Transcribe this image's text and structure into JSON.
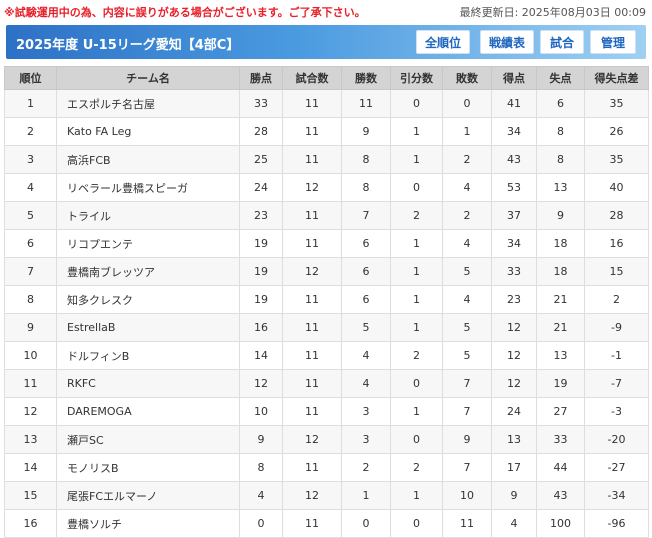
{
  "notice": "※試験運用中の為、内容に誤りがある場合がございます。ご了承下さい。",
  "updated": "最終更新日: 2025年08月03日 00:09",
  "header": {
    "title": "2025年度 U-15リーグ愛知【4部C】",
    "buttons": {
      "standings": "全順位",
      "results": "戦績表",
      "matches": "試合",
      "admin": "管理"
    }
  },
  "table": {
    "columns": [
      "順位",
      "チーム名",
      "勝点",
      "試合数",
      "勝数",
      "引分数",
      "敗数",
      "得点",
      "失点",
      "得失点差"
    ],
    "rows": [
      [
        "1",
        "エスポルチ名古屋",
        "33",
        "11",
        "11",
        "0",
        "0",
        "41",
        "6",
        "35"
      ],
      [
        "2",
        "Kato FA Leg",
        "28",
        "11",
        "9",
        "1",
        "1",
        "34",
        "8",
        "26"
      ],
      [
        "3",
        "高浜FCB",
        "25",
        "11",
        "8",
        "1",
        "2",
        "43",
        "8",
        "35"
      ],
      [
        "4",
        "リベラール豊橋スピーガ",
        "24",
        "12",
        "8",
        "0",
        "4",
        "53",
        "13",
        "40"
      ],
      [
        "5",
        "トライル",
        "23",
        "11",
        "7",
        "2",
        "2",
        "37",
        "9",
        "28"
      ],
      [
        "6",
        "リコプエンテ",
        "19",
        "11",
        "6",
        "1",
        "4",
        "34",
        "18",
        "16"
      ],
      [
        "7",
        "豊橋南ブレッツア",
        "19",
        "12",
        "6",
        "1",
        "5",
        "33",
        "18",
        "15"
      ],
      [
        "8",
        "知多クレスク",
        "19",
        "11",
        "6",
        "1",
        "4",
        "23",
        "21",
        "2"
      ],
      [
        "9",
        "EstrellaB",
        "16",
        "11",
        "5",
        "1",
        "5",
        "12",
        "21",
        "-9"
      ],
      [
        "10",
        "ドルフィンB",
        "14",
        "11",
        "4",
        "2",
        "5",
        "12",
        "13",
        "-1"
      ],
      [
        "11",
        "RKFC",
        "12",
        "11",
        "4",
        "0",
        "7",
        "12",
        "19",
        "-7"
      ],
      [
        "12",
        "DAREMOGA",
        "10",
        "11",
        "3",
        "1",
        "7",
        "24",
        "27",
        "-3"
      ],
      [
        "13",
        "瀬戸SC",
        "9",
        "12",
        "3",
        "0",
        "9",
        "13",
        "33",
        "-20"
      ],
      [
        "14",
        "モノリスB",
        "8",
        "11",
        "2",
        "2",
        "7",
        "17",
        "44",
        "-27"
      ],
      [
        "15",
        "尾張FCエルマーノ",
        "4",
        "12",
        "1",
        "1",
        "10",
        "9",
        "43",
        "-34"
      ],
      [
        "16",
        "豊橋ソルチ",
        "0",
        "11",
        "0",
        "0",
        "11",
        "4",
        "100",
        "-96"
      ]
    ]
  }
}
